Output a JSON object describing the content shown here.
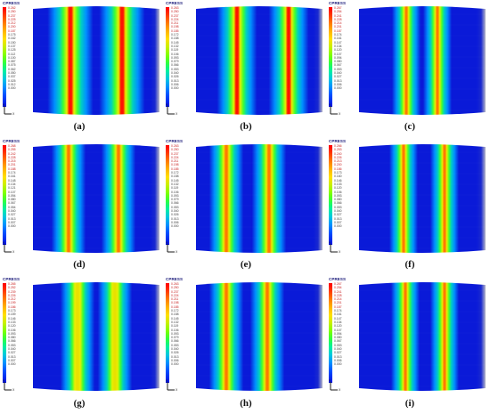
{
  "legend_title": "CPRESS",
  "panels": [
    {
      "id": "a",
      "caption": "(a)",
      "max": 0.262,
      "legend_values": [
        "0.262",
        "0.250",
        "0.237",
        "0.225",
        "0.212",
        "0.200",
        "0.187",
        "0.175",
        "0.162",
        "0.150",
        "0.137",
        "0.125",
        "0.112",
        "0.100",
        "0.087",
        "0.075",
        "0.062",
        "0.050",
        "0.037",
        "0.025",
        "0.012",
        "0.000"
      ]
    },
    {
      "id": "b",
      "caption": "(b)",
      "max": 0.263,
      "legend_values": [
        "0.263",
        "0.250",
        "0.237",
        "0.224",
        "0.211",
        "0.198",
        "0.185",
        "0.172",
        "0.158",
        "0.145",
        "0.132",
        "0.119",
        "0.106",
        "0.093",
        "0.079",
        "0.066",
        "0.053",
        "0.040",
        "0.026",
        "0.013",
        "0.006",
        "0.000"
      ]
    },
    {
      "id": "c",
      "caption": "(c)",
      "max": 0.267,
      "legend_values": [
        "0.267",
        "0.254",
        "0.241",
        "0.228",
        "0.214",
        "0.201",
        "0.187",
        "0.174",
        "0.161",
        "0.147",
        "0.134",
        "0.120",
        "0.107",
        "0.094",
        "0.080",
        "0.067",
        "0.053",
        "0.040",
        "0.027",
        "0.013",
        "0.006",
        "0.000"
      ]
    },
    {
      "id": "d",
      "caption": "(d)",
      "max": 0.268,
      "legend_values": [
        "0.268",
        "0.255",
        "0.242",
        "0.228",
        "0.215",
        "0.201",
        "0.188",
        "0.174",
        "0.161",
        "0.148",
        "0.134",
        "0.121",
        "0.107",
        "0.094",
        "0.080",
        "0.067",
        "0.054",
        "0.040",
        "0.027",
        "0.013",
        "0.007",
        "0.000"
      ]
    },
    {
      "id": "e",
      "caption": "(e)",
      "max": 0.263,
      "legend_values": [
        "0.263",
        "0.250",
        "0.237",
        "0.224",
        "0.211",
        "0.198",
        "0.185",
        "0.172",
        "0.158",
        "0.145",
        "0.132",
        "0.119",
        "0.106",
        "0.093",
        "0.079",
        "0.066",
        "0.053",
        "0.040",
        "0.026",
        "0.013",
        "0.006",
        "0.000"
      ]
    },
    {
      "id": "f",
      "caption": "(f)",
      "max": 0.266,
      "legend_values": [
        "0.266",
        "0.253",
        "0.240",
        "0.226",
        "0.213",
        "0.200",
        "0.186",
        "0.173",
        "0.160",
        "0.146",
        "0.133",
        "0.120",
        "0.106",
        "0.093",
        "0.080",
        "0.066",
        "0.053",
        "0.040",
        "0.027",
        "0.013",
        "0.007",
        "0.000"
      ]
    },
    {
      "id": "g",
      "caption": "(g)",
      "max": 0.265,
      "legend_values": [
        "0.265",
        "0.252",
        "0.239",
        "0.226",
        "0.212",
        "0.199",
        "0.186",
        "0.173",
        "0.159",
        "0.146",
        "0.133",
        "0.120",
        "0.106",
        "0.093",
        "0.080",
        "0.066",
        "0.053",
        "0.040",
        "0.027",
        "0.013",
        "0.007",
        "0.000"
      ]
    },
    {
      "id": "h",
      "caption": "(h)",
      "max": 0.263,
      "legend_values": [
        "0.263",
        "0.250",
        "0.237",
        "0.224",
        "0.211",
        "0.198",
        "0.185",
        "0.172",
        "0.158",
        "0.145",
        "0.132",
        "0.119",
        "0.106",
        "0.093",
        "0.079",
        "0.066",
        "0.053",
        "0.040",
        "0.026",
        "0.013",
        "0.006",
        "0.000"
      ]
    },
    {
      "id": "i",
      "caption": "(i)",
      "max": 0.267,
      "legend_values": [
        "0.267",
        "0.254",
        "0.241",
        "0.228",
        "0.214",
        "0.201",
        "0.187",
        "0.174",
        "0.161",
        "0.147",
        "0.134",
        "0.120",
        "0.107",
        "0.094",
        "0.080",
        "0.067",
        "0.053",
        "0.040",
        "0.027",
        "0.013",
        "0.006",
        "0.000"
      ]
    }
  ],
  "colors": {
    "low": "#0a1ad8",
    "mid": "#30e040",
    "high": "#ff1000",
    "background": "#ffffff"
  }
}
